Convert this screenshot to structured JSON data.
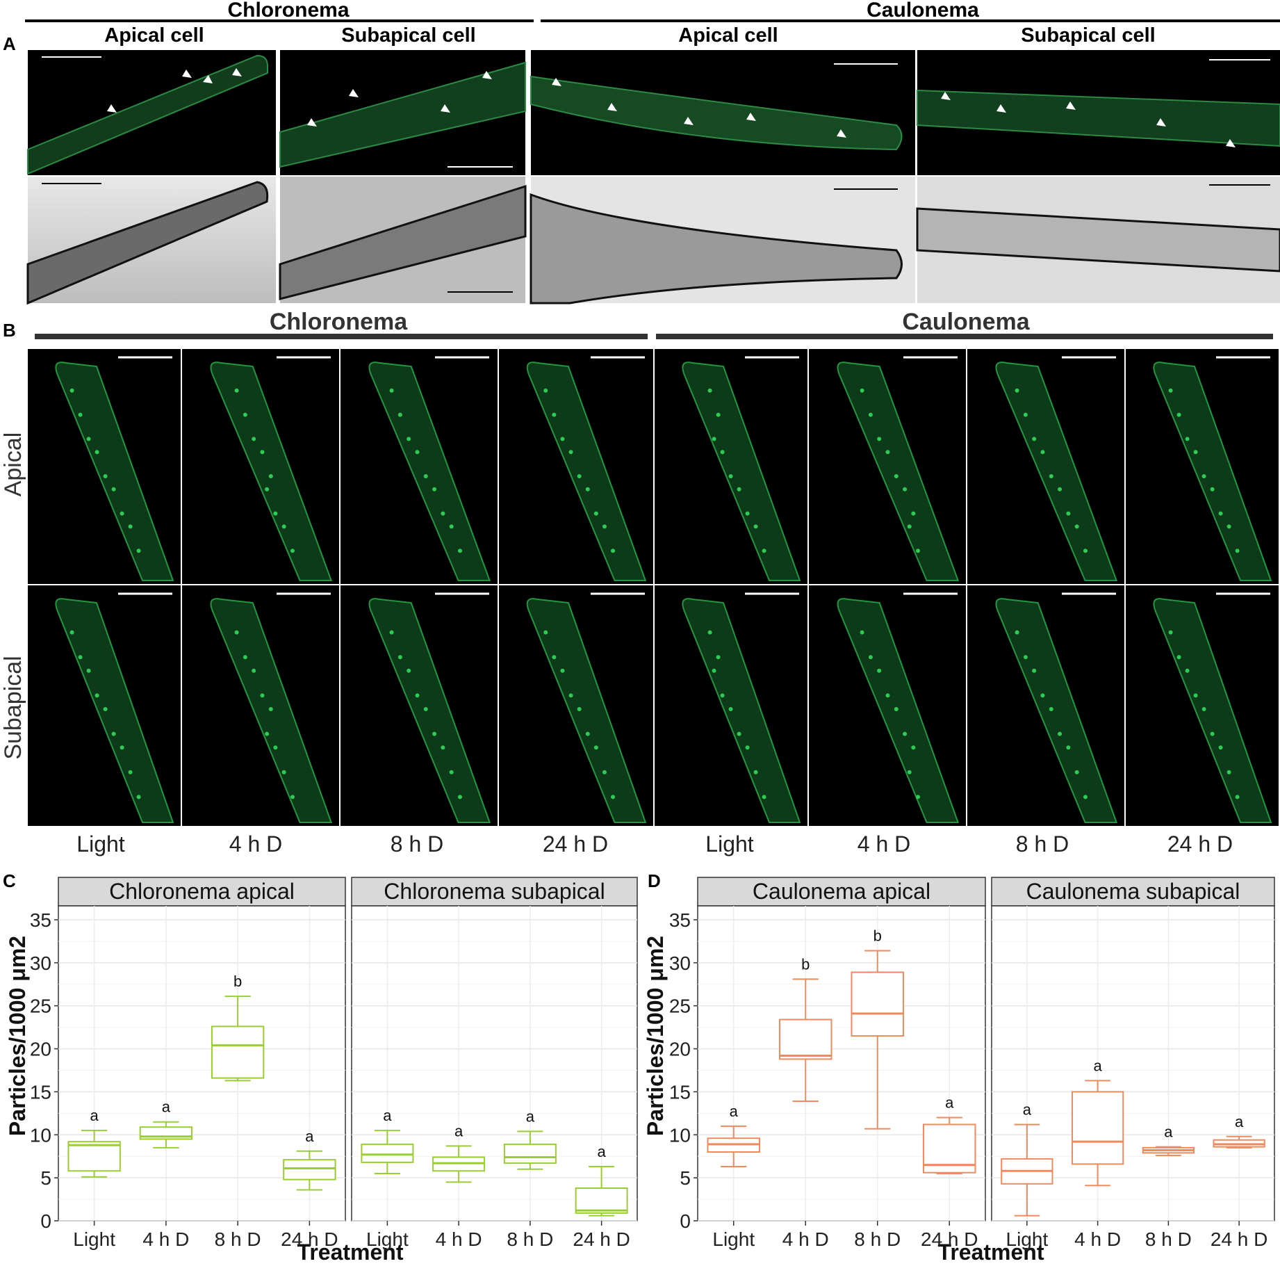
{
  "panel_a": {
    "letter": "A",
    "groups": [
      {
        "title": "Chloronema",
        "cells": [
          "Apical cell",
          "Subapical cell"
        ]
      },
      {
        "title": "Caulonema",
        "cells": [
          "Apical cell",
          "Subapical cell"
        ]
      }
    ]
  },
  "panel_b": {
    "letter": "B",
    "groups": [
      "Chloronema",
      "Caulonema"
    ],
    "rows": [
      "Apical",
      "Subapical"
    ],
    "conditions": [
      "Light",
      "4 h D",
      "8 h D",
      "24 h D",
      "Light",
      "4 h D",
      "8 h D",
      "24 h D"
    ]
  },
  "colors": {
    "fluorescence": "#2ecc55",
    "chloronema_box": "#9ACD32",
    "caulonema_box": "#F08A5D",
    "strip": "#d9d9d9"
  },
  "chart_data": [
    {
      "panel": "C",
      "type": "box",
      "facet": "Chloronema apical",
      "categories": [
        "Light",
        "4 h D",
        "8 h D",
        "24 h D"
      ],
      "boxes": [
        {
          "min": 5.1,
          "q1": 5.8,
          "median": 8.8,
          "q3": 9.2,
          "max": 10.5,
          "label": "a"
        },
        {
          "min": 8.5,
          "q1": 9.5,
          "median": 9.8,
          "q3": 10.9,
          "max": 11.5,
          "label": "a"
        },
        {
          "min": 16.3,
          "q1": 16.6,
          "median": 20.4,
          "q3": 22.6,
          "max": 26.1,
          "label": "b"
        },
        {
          "min": 3.6,
          "q1": 4.8,
          "median": 6.1,
          "q3": 7.1,
          "max": 8.1,
          "label": "a"
        }
      ],
      "xlabel": "Treatment",
      "ylabel": "Particles/1000 μm2",
      "ylim": [
        0,
        35
      ],
      "yticks": [
        0,
        5,
        10,
        15,
        20,
        25,
        30,
        35
      ]
    },
    {
      "panel": "C",
      "type": "box",
      "facet": "Chloronema subapical",
      "categories": [
        "Light",
        "4 h D",
        "8 h D",
        "24 h D"
      ],
      "boxes": [
        {
          "min": 5.5,
          "q1": 6.8,
          "median": 7.7,
          "q3": 8.9,
          "max": 10.5,
          "label": "a"
        },
        {
          "min": 4.5,
          "q1": 5.8,
          "median": 6.7,
          "q3": 7.4,
          "max": 8.7,
          "label": "a"
        },
        {
          "min": 6.0,
          "q1": 6.7,
          "median": 7.4,
          "q3": 8.9,
          "max": 10.4,
          "label": "a"
        },
        {
          "min": 0.6,
          "q1": 0.9,
          "median": 1.2,
          "q3": 3.8,
          "max": 6.3,
          "label": "a"
        }
      ],
      "xlabel": "Treatment",
      "ylabel": "Particles/1000 μm2",
      "ylim": [
        0,
        35
      ],
      "yticks": [
        0,
        5,
        10,
        15,
        20,
        25,
        30,
        35
      ]
    },
    {
      "panel": "D",
      "type": "box",
      "facet": "Caulonema apical",
      "categories": [
        "Light",
        "4 h D",
        "8 h D",
        "24 h D"
      ],
      "boxes": [
        {
          "min": 6.3,
          "q1": 8.0,
          "median": 8.9,
          "q3": 9.6,
          "max": 11.0,
          "label": "a"
        },
        {
          "min": 13.9,
          "q1": 18.8,
          "median": 19.2,
          "q3": 23.4,
          "max": 28.1,
          "label": "b"
        },
        {
          "min": 10.7,
          "q1": 21.5,
          "median": 24.1,
          "q3": 28.9,
          "max": 31.4,
          "label": "b"
        },
        {
          "min": 5.5,
          "q1": 5.6,
          "median": 6.5,
          "q3": 11.2,
          "max": 12.0,
          "label": "a"
        }
      ],
      "xlabel": "Treatment",
      "ylabel": "Particles/1000 μm2",
      "ylim": [
        0,
        35
      ],
      "yticks": [
        0,
        5,
        10,
        15,
        20,
        25,
        30,
        35
      ]
    },
    {
      "panel": "D",
      "type": "box",
      "facet": "Caulonema subapical",
      "categories": [
        "Light",
        "4 h D",
        "8 h D",
        "24 h D"
      ],
      "boxes": [
        {
          "min": 0.6,
          "q1": 4.3,
          "median": 5.8,
          "q3": 7.2,
          "max": 11.2,
          "label": "a"
        },
        {
          "min": 4.1,
          "q1": 6.6,
          "median": 9.2,
          "q3": 15.0,
          "max": 16.3,
          "label": "a"
        },
        {
          "min": 7.6,
          "q1": 7.9,
          "median": 8.2,
          "q3": 8.5,
          "max": 8.6,
          "label": "a"
        },
        {
          "min": 8.5,
          "q1": 8.6,
          "median": 8.9,
          "q3": 9.4,
          "max": 9.8,
          "label": "a"
        }
      ],
      "xlabel": "Treatment",
      "ylabel": "Particles/1000 μm2",
      "ylim": [
        0,
        35
      ],
      "yticks": [
        0,
        5,
        10,
        15,
        20,
        25,
        30,
        35
      ]
    }
  ],
  "panel_c": {
    "letter": "C"
  },
  "panel_d": {
    "letter": "D"
  }
}
